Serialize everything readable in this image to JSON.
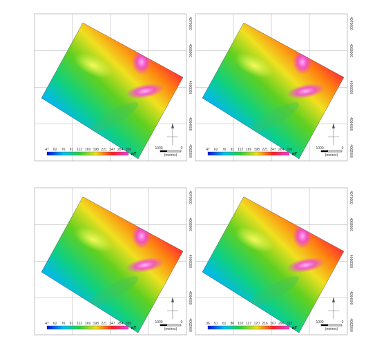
{
  "panels": [
    {
      "legend": {
        "labels": [
          "47",
          "62",
          "76",
          "91",
          "112",
          "169",
          "198",
          "221",
          "247",
          "284",
          "356"
        ],
        "unit": "nT"
      },
      "northings": [
        "4070000",
        "4068000",
        "4066000",
        "4064000",
        "4062000"
      ],
      "scale": {
        "start": "1000",
        "end": "0",
        "unit": "(metres)"
      }
    },
    {
      "legend": {
        "labels": [
          "47",
          "62",
          "76",
          "91",
          "112",
          "169",
          "198",
          "221",
          "247",
          "284",
          "356"
        ],
        "unit": "nT"
      },
      "northings": [
        "4070000",
        "4068000",
        "4066000",
        "4064000",
        "4062000"
      ],
      "scale": {
        "start": "1000",
        "end": "0",
        "unit": "(metres)"
      }
    },
    {
      "legend": {
        "labels": [
          "47",
          "62",
          "76",
          "91",
          "112",
          "169",
          "198",
          "221",
          "247",
          "284",
          "356"
        ],
        "unit": "nT"
      },
      "northings": [
        "4070000",
        "4068000",
        "4066000",
        "4064000",
        "4062000"
      ],
      "scale": {
        "start": "1000",
        "end": "0",
        "unit": "(metres)"
      }
    },
    {
      "legend": {
        "labels": [
          "36",
          "51",
          "61",
          "80",
          "102",
          "127",
          "170",
          "216",
          "267",
          "296",
          "322"
        ],
        "unit": "nT"
      },
      "northings": [
        "4070000",
        "4068000",
        "4066000",
        "4064000",
        "4062000"
      ],
      "scale": {
        "start": "1000",
        "end": "0",
        "unit": "(metres)"
      }
    }
  ]
}
